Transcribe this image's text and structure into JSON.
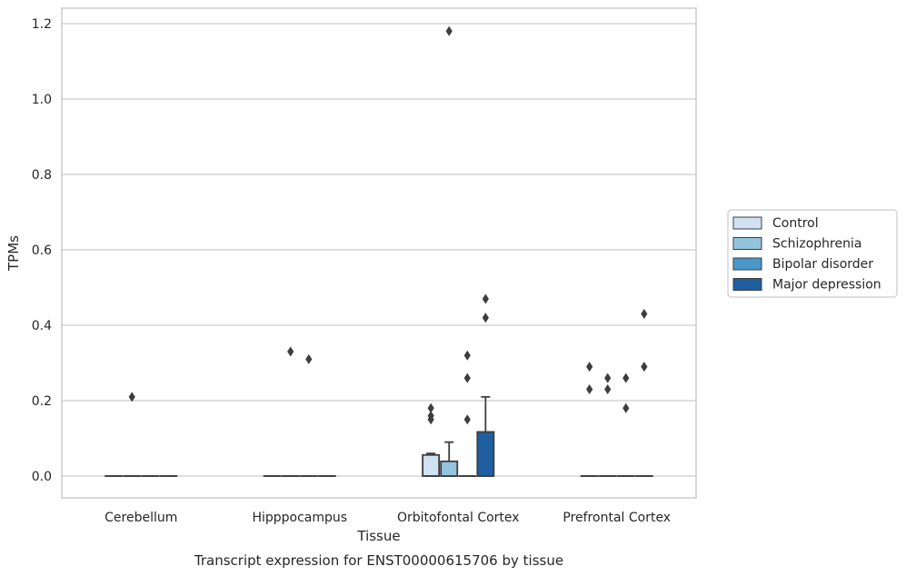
{
  "chart_data": {
    "type": "boxplot",
    "caption": "Transcript expression for ENST00000615706 by tissue",
    "xlabel": "Tissue",
    "ylabel": "TPMs",
    "ylim": [
      -0.057,
      1.24
    ],
    "yticks": [
      "0.0",
      "0.2",
      "0.4",
      "0.6",
      "0.8",
      "1.0",
      "1.2"
    ],
    "ytick_values": [
      0,
      0.2,
      0.4,
      0.6,
      0.8,
      1.0,
      1.2
    ],
    "grid": "horizontal",
    "legend_position": "right",
    "categories": [
      "Cerebellum",
      "Hipppocampus",
      "Orbitofontal Cortex",
      "Prefrontal Cortex"
    ],
    "series": [
      {
        "name": "Control",
        "color": "#cfe1f2",
        "boxes": [
          {
            "q1": 0,
            "median": 0,
            "q3": 0,
            "whisker_low": 0,
            "whisker_high": 0,
            "outliers": []
          },
          {
            "q1": 0,
            "median": 0,
            "q3": 0,
            "whisker_low": 0,
            "whisker_high": 0,
            "outliers": []
          },
          {
            "q1": 0,
            "median": 0,
            "q3": 0.056,
            "whisker_low": 0,
            "whisker_high": 0.06,
            "outliers": [
              0.18,
              0.16,
              0.15
            ]
          },
          {
            "q1": 0,
            "median": 0,
            "q3": 0,
            "whisker_low": 0,
            "whisker_high": 0,
            "outliers": [
              0.29,
              0.23
            ]
          }
        ]
      },
      {
        "name": "Schizophrenia",
        "color": "#93c4de",
        "boxes": [
          {
            "q1": 0,
            "median": 0,
            "q3": 0,
            "whisker_low": 0,
            "whisker_high": 0,
            "outliers": [
              0.21
            ]
          },
          {
            "q1": 0,
            "median": 0,
            "q3": 0,
            "whisker_low": 0,
            "whisker_high": 0,
            "outliers": [
              0.33
            ]
          },
          {
            "q1": 0,
            "median": 0,
            "q3": 0.039,
            "whisker_low": 0,
            "whisker_high": 0.09,
            "outliers": [
              1.18
            ]
          },
          {
            "q1": 0,
            "median": 0,
            "q3": 0,
            "whisker_low": 0,
            "whisker_high": 0,
            "outliers": [
              0.26,
              0.23
            ]
          }
        ]
      },
      {
        "name": "Bipolar disorder",
        "color": "#4a98c9",
        "boxes": [
          {
            "q1": 0,
            "median": 0,
            "q3": 0,
            "whisker_low": 0,
            "whisker_high": 0,
            "outliers": []
          },
          {
            "q1": 0,
            "median": 0,
            "q3": 0,
            "whisker_low": 0,
            "whisker_high": 0,
            "outliers": [
              0.31
            ]
          },
          {
            "q1": 0,
            "median": 0,
            "q3": 0,
            "whisker_low": 0,
            "whisker_high": 0,
            "outliers": [
              0.32,
              0.26,
              0.15
            ]
          },
          {
            "q1": 0,
            "median": 0,
            "q3": 0,
            "whisker_low": 0,
            "whisker_high": 0,
            "outliers": [
              0.26,
              0.18
            ]
          }
        ]
      },
      {
        "name": "Major depression",
        "color": "#1f5f9f",
        "boxes": [
          {
            "q1": 0,
            "median": 0,
            "q3": 0,
            "whisker_low": 0,
            "whisker_high": 0,
            "outliers": []
          },
          {
            "q1": 0,
            "median": 0,
            "q3": 0,
            "whisker_low": 0,
            "whisker_high": 0,
            "outliers": []
          },
          {
            "q1": 0,
            "median": 0,
            "q3": 0.117,
            "whisker_low": 0,
            "whisker_high": 0.21,
            "outliers": [
              0.47,
              0.42
            ]
          },
          {
            "q1": 0,
            "median": 0,
            "q3": 0,
            "whisker_low": 0,
            "whisker_high": 0,
            "outliers": [
              0.43,
              0.29
            ]
          }
        ]
      }
    ]
  }
}
